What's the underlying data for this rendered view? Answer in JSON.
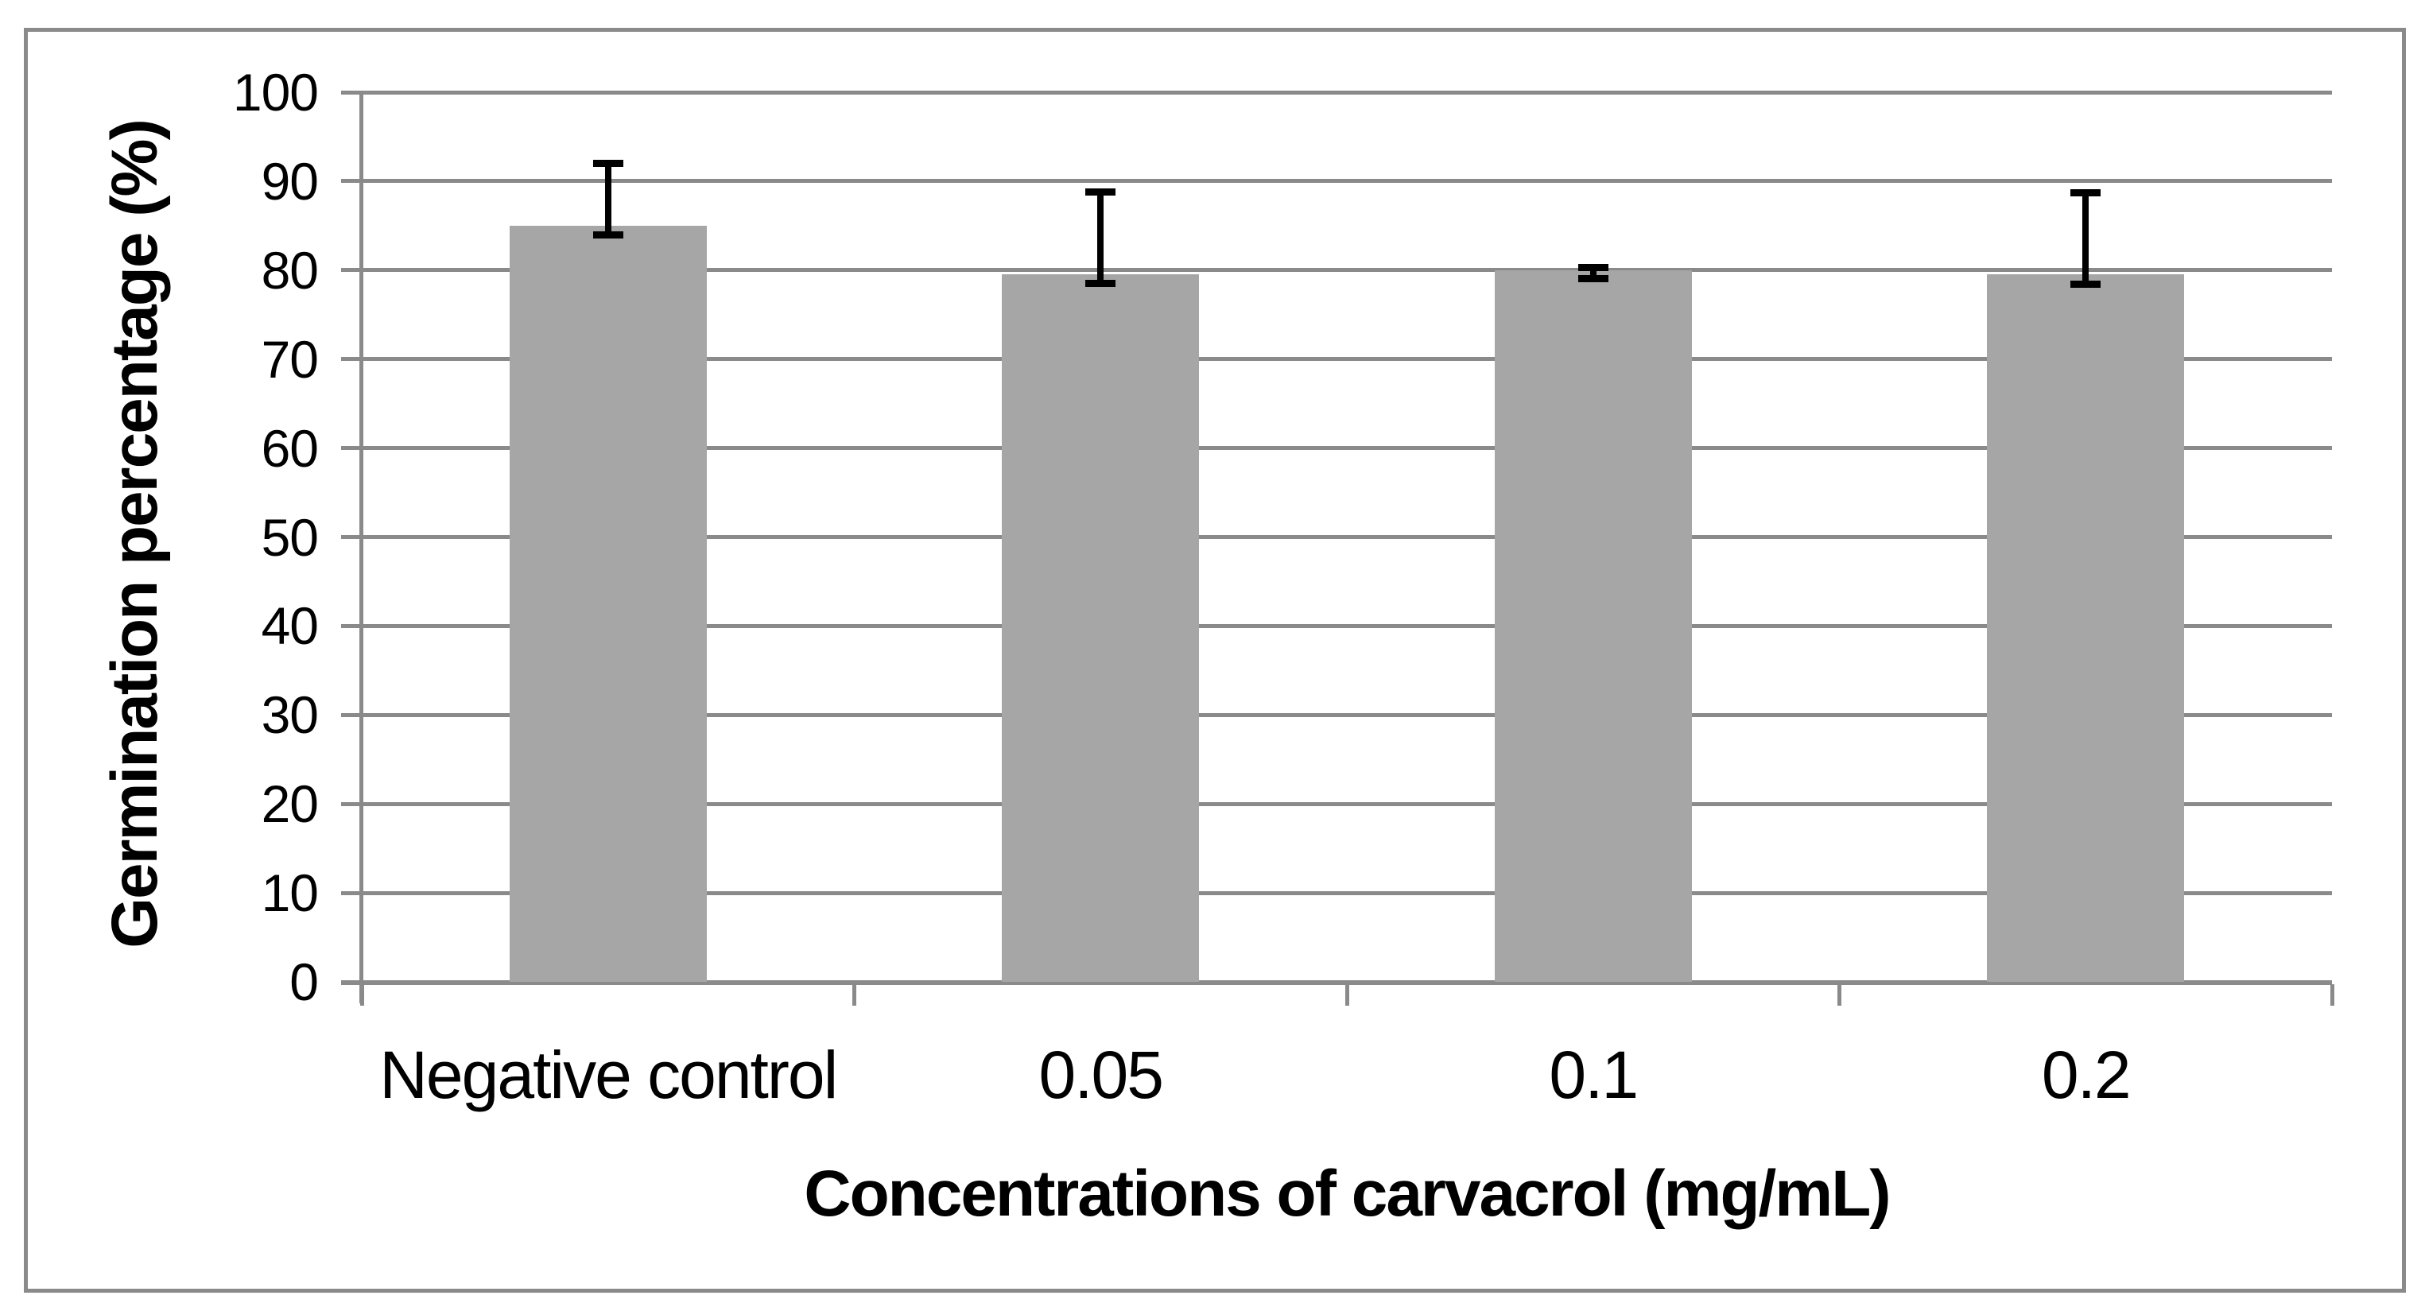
{
  "chart_data": {
    "type": "bar",
    "title": "",
    "xlabel": "Concentrations of carvacrol (mg/mL)",
    "ylabel": "Germination percentage (%)",
    "categories": [
      "Negative control",
      "0.05",
      "0.1",
      "0.2"
    ],
    "values": [
      85,
      79.5,
      80,
      79.5
    ],
    "error_bars": [
      {
        "upper": 92.0,
        "lower": 84.0
      },
      {
        "upper": 88.8,
        "lower": 78.5
      },
      {
        "upper": 80.3,
        "lower": 79.0
      },
      {
        "upper": 88.7,
        "lower": 78.4
      }
    ],
    "ylim": [
      0,
      100
    ],
    "ytick_step": 10,
    "ytick_labels": [
      "0",
      "10",
      "20",
      "30",
      "40",
      "50",
      "60",
      "70",
      "80",
      "90",
      "100"
    ],
    "grid": true,
    "legend": false,
    "bar_color": "#a6a6a6",
    "gridline_color": "#8a8a8a",
    "error_bar_color": "#000000",
    "frame_border_color": "#8a8a8a",
    "background_color": "#ffffff"
  }
}
